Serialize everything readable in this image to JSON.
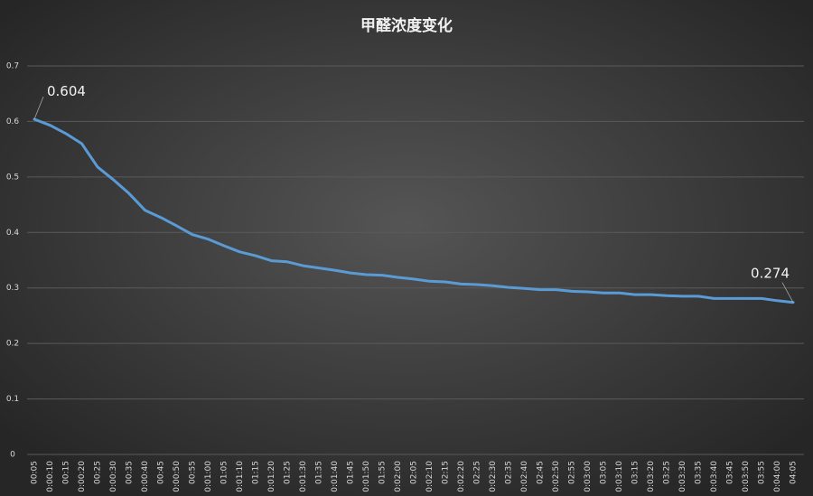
{
  "chart_data": {
    "type": "line",
    "title": "甲醛浓度变化",
    "categories": [
      "00:05",
      "0:00:10",
      "00:15",
      "0:00:20",
      "00:25",
      "0:00:30",
      "00:35",
      "0:00:40",
      "00:45",
      "0:00:50",
      "00:55",
      "0:01:00",
      "01:05",
      "0:01:10",
      "01:15",
      "0:01:20",
      "01:25",
      "0:01:30",
      "01:35",
      "0:01:40",
      "01:45",
      "0:01:50",
      "01:55",
      "0:02:00",
      "02:05",
      "0:02:10",
      "02:15",
      "0:02:20",
      "02:25",
      "0:02:30",
      "02:35",
      "0:02:40",
      "02:45",
      "0:02:50",
      "02:55",
      "0:03:00",
      "03:05",
      "0:03:10",
      "03:15",
      "0:03:20",
      "03:25",
      "0:03:30",
      "03:35",
      "0:03:40",
      "03:45",
      "0:03:50",
      "03:55",
      "0:04:00",
      "04:05"
    ],
    "values": [
      0.604,
      0.593,
      0.578,
      0.56,
      0.518,
      0.495,
      0.47,
      0.44,
      0.427,
      0.412,
      0.396,
      0.388,
      0.376,
      0.365,
      0.358,
      0.349,
      0.347,
      0.34,
      0.336,
      0.332,
      0.327,
      0.324,
      0.323,
      0.319,
      0.316,
      0.312,
      0.311,
      0.307,
      0.306,
      0.304,
      0.301,
      0.299,
      0.297,
      0.297,
      0.294,
      0.293,
      0.291,
      0.291,
      0.288,
      0.288,
      0.286,
      0.285,
      0.285,
      0.281,
      0.281,
      0.281,
      0.281,
      0.277,
      0.274
    ],
    "color": "#5b9bd5",
    "ylim": [
      0,
      0.7
    ],
    "yticks": [
      0,
      0.1,
      0.2,
      0.3,
      0.4,
      0.5,
      0.6,
      0.7
    ],
    "grid": true
  }
}
